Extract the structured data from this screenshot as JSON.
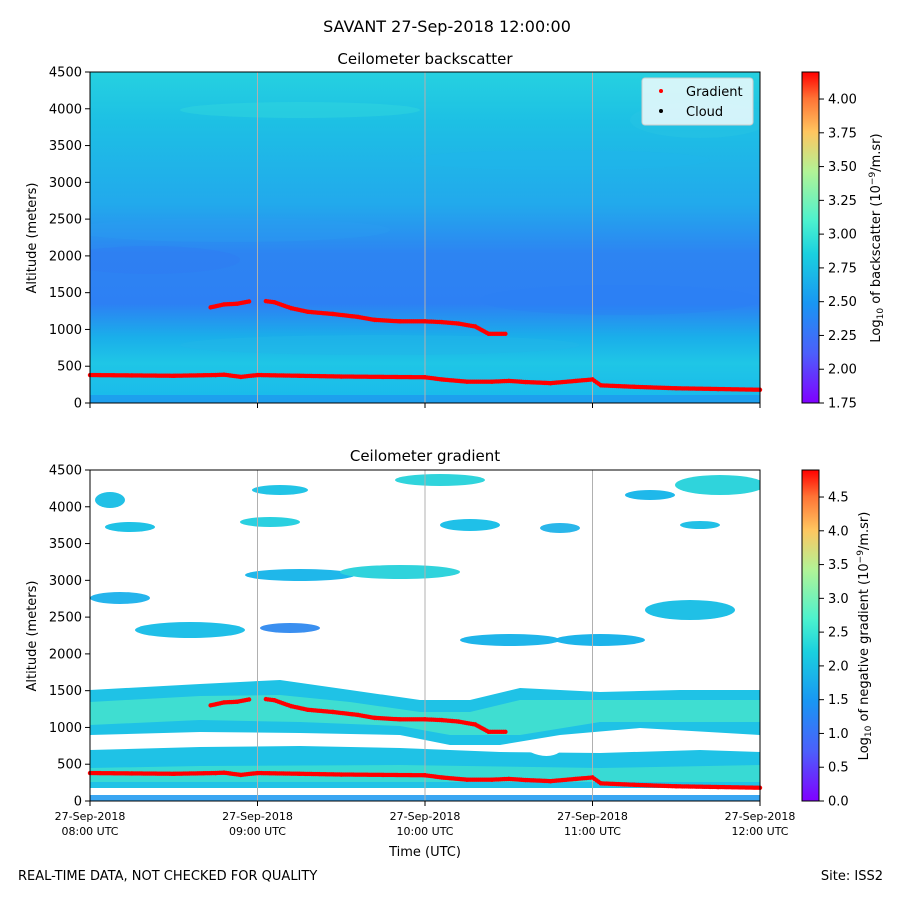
{
  "suptitle": "SAVANT 27-Sep-2018 12:00:00",
  "footer": {
    "left": "REAL-TIME DATA, NOT CHECKED FOR QUALITY",
    "right": "Site: ISS2"
  },
  "chart_data": [
    {
      "type": "heatmap",
      "title": "Ceilometer backscatter",
      "xlabel": "",
      "ylabel": "Altitude (meters)",
      "xlim_hours_utc": [
        8,
        12
      ],
      "ylim": [
        0,
        4500
      ],
      "yticks": [
        0,
        500,
        1000,
        1500,
        2000,
        2500,
        3000,
        3500,
        4000,
        4500
      ],
      "x_ticklabels": [],
      "grid": "vertical lines at 09:00, 10:00, 11:00 UTC",
      "colorbar": {
        "label": "Log10 of backscatter (10^-9/m.sr)",
        "range": [
          1.75,
          4.2
        ],
        "ticks": [
          "1.75",
          "2.00",
          "2.25",
          "2.50",
          "2.75",
          "3.00",
          "3.25",
          "3.50",
          "3.75",
          "4.00"
        ],
        "colormap": "rainbow"
      },
      "legend": {
        "placement": "top-right",
        "entries": [
          {
            "label": "Gradient",
            "color": "#ff0000"
          },
          {
            "label": "Cloud",
            "color": "#000000"
          }
        ]
      },
      "field_description": "backscatter mostly 2.2-2.6; darker band near 1500-2000 m"
    },
    {
      "type": "heatmap",
      "title": "Ceilometer gradient",
      "xlabel": "Time (UTC)",
      "ylabel": "Altitude (meters)",
      "xlim_hours_utc": [
        8,
        12
      ],
      "ylim": [
        0,
        4500
      ],
      "yticks": [
        0,
        500,
        1000,
        1500,
        2000,
        2500,
        3000,
        3500,
        4000,
        4500
      ],
      "x_ticklabels": [
        {
          "date": "27-Sep-2018",
          "time": "08:00 UTC"
        },
        {
          "date": "27-Sep-2018",
          "time": "09:00 UTC"
        },
        {
          "date": "27-Sep-2018",
          "time": "10:00 UTC"
        },
        {
          "date": "27-Sep-2018",
          "time": "11:00 UTC"
        },
        {
          "date": "27-Sep-2018",
          "time": "12:00 UTC"
        }
      ],
      "grid": "vertical lines at 09:00, 10:00, 11:00 UTC",
      "colorbar": {
        "label": "Log10 of negative gradient (10^-9/m.sr)",
        "range": [
          0.0,
          4.9
        ],
        "ticks": [
          "0.0",
          "0.5",
          "1.0",
          "1.5",
          "2.0",
          "2.5",
          "3.0",
          "3.5",
          "4.0",
          "4.5"
        ],
        "colormap": "rainbow"
      },
      "field_description": "negative-gradient layers 0-1600 m, patchy clouds/noise above"
    }
  ],
  "gradient_series": {
    "name": "Gradient",
    "color": "#ff0000",
    "lower_layer": {
      "time_h": [
        8.0,
        8.25,
        8.5,
        8.75,
        8.8,
        8.9,
        9.0,
        9.25,
        9.5,
        9.75,
        10.0,
        10.1,
        10.25,
        10.4,
        10.5,
        10.6,
        10.75,
        10.9,
        11.0,
        11.05,
        11.25,
        11.5,
        11.75,
        12.0
      ],
      "altitude_m": [
        380,
        375,
        370,
        380,
        385,
        355,
        380,
        370,
        360,
        355,
        350,
        320,
        290,
        290,
        300,
        285,
        270,
        300,
        320,
        240,
        220,
        200,
        190,
        180
      ]
    },
    "upper_layer": {
      "time_h": [
        8.72,
        8.8,
        8.88,
        8.95,
        9.05,
        9.1,
        9.2,
        9.3,
        9.45,
        9.6,
        9.7,
        9.85,
        10.0,
        10.1,
        10.2,
        10.3,
        10.38,
        10.48
      ],
      "altitude_m": [
        1300,
        1340,
        1350,
        1380,
        1385,
        1370,
        1290,
        1240,
        1210,
        1170,
        1130,
        1110,
        1110,
        1100,
        1080,
        1040,
        940,
        940
      ]
    }
  }
}
